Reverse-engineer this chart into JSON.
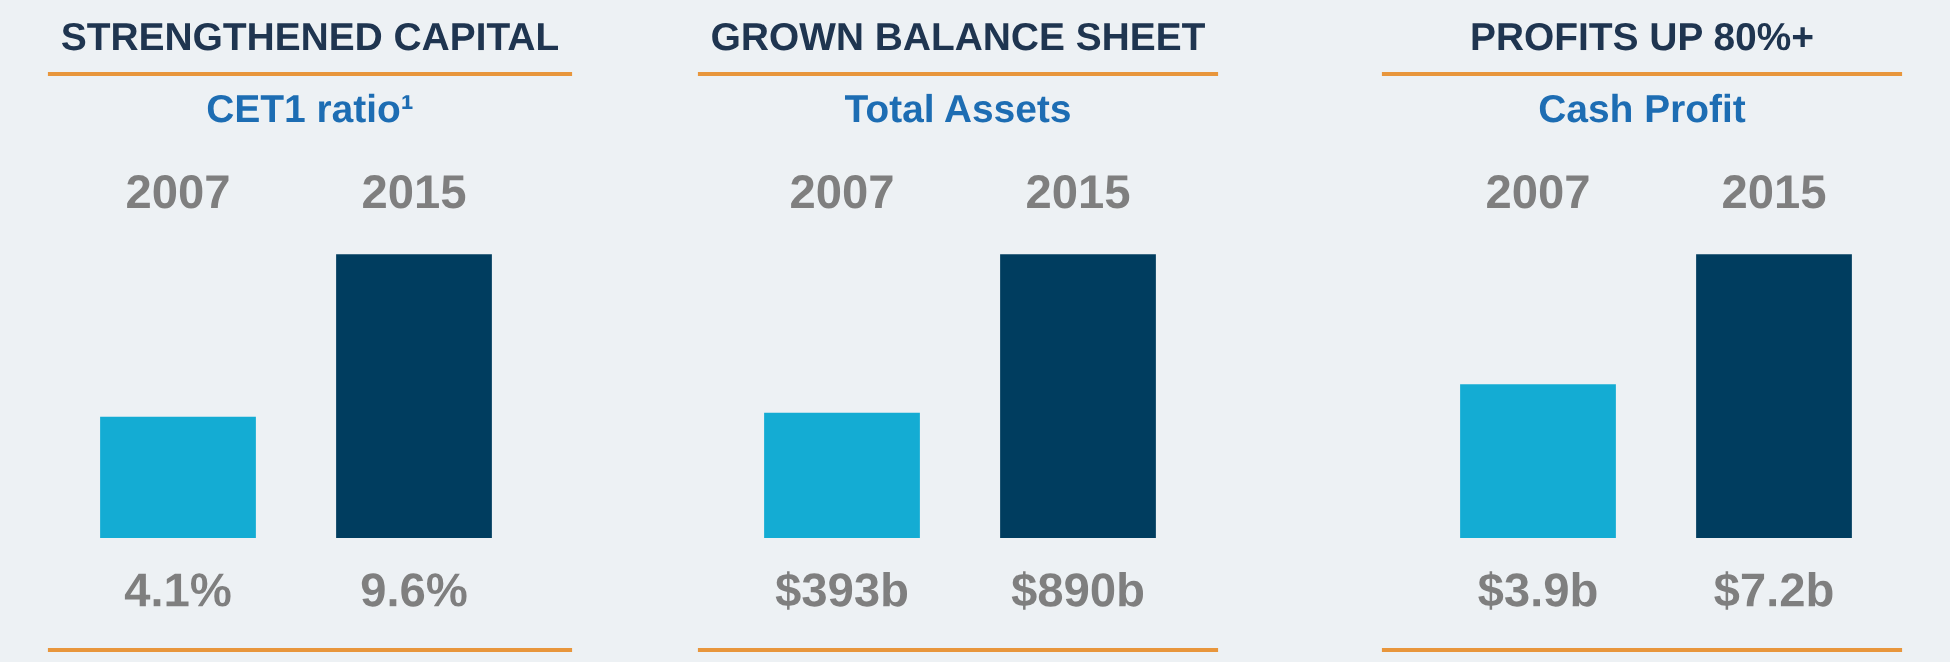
{
  "chart_data": [
    {
      "type": "bar",
      "title": "STRENGTHENED CAPITAL",
      "subtitle": "CET1 ratio¹",
      "categories": [
        "2007",
        "2015"
      ],
      "values": [
        4.1,
        9.6
      ],
      "colors": [
        "#14acd3",
        "#003d5f"
      ],
      "value_labels": [
        "4.1%",
        "9.6%"
      ],
      "tick_labels": "x",
      "grid": false,
      "legend": false
    },
    {
      "type": "bar",
      "title": "GROWN BALANCE SHEET",
      "subtitle": "Total Assets",
      "categories": [
        "2007",
        "2015"
      ],
      "values": [
        393,
        890
      ],
      "colors": [
        "#14acd3",
        "#003d5f"
      ],
      "value_labels": [
        "$393b",
        "$890b"
      ],
      "tick_labels": "x",
      "grid": false,
      "legend": false
    },
    {
      "type": "bar",
      "title": "PROFITS UP 80%+",
      "subtitle": "Cash Profit",
      "categories": [
        "2007",
        "2015"
      ],
      "values": [
        3.9,
        7.2
      ],
      "colors": [
        "#14acd3",
        "#003d5f"
      ],
      "value_labels": [
        "$3.9b",
        "$7.2b"
      ],
      "tick_labels": "x",
      "grid": false,
      "legend": false
    }
  ]
}
